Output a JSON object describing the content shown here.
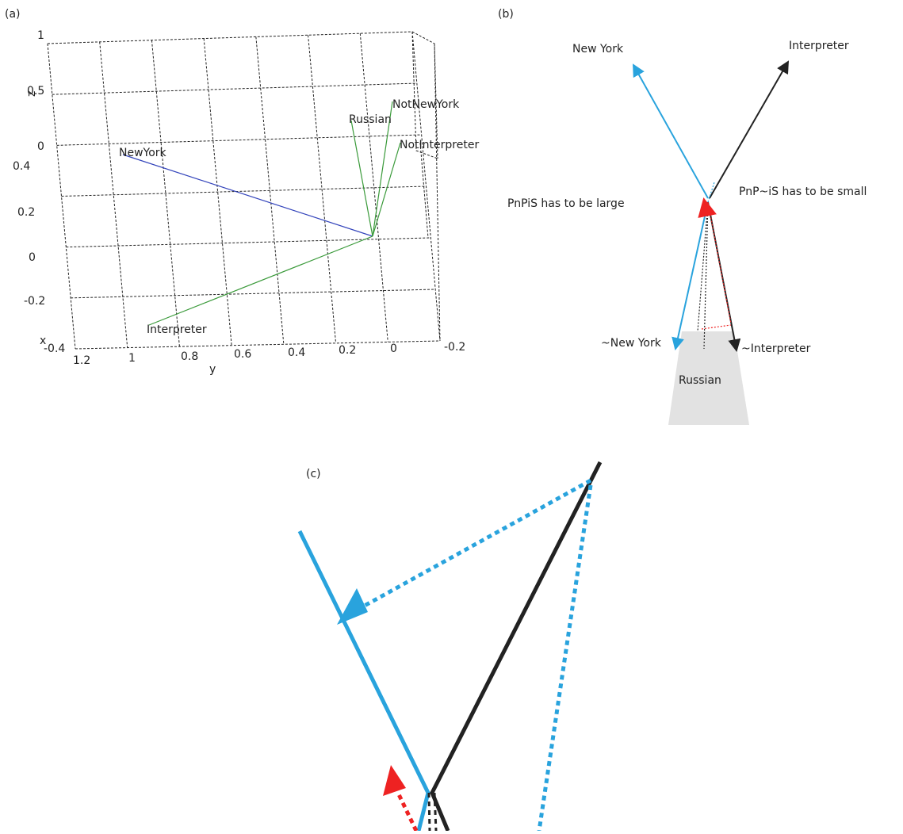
{
  "panels": [
    {
      "label": "(a)",
      "z_axis_label": "z",
      "x_axis_label": "x",
      "y_axis_label": "y",
      "z_ticks": [
        "1",
        "0.5",
        "0"
      ],
      "x_ticks": [
        "0.4",
        "0.2",
        "0",
        "-0.2",
        "-0.4"
      ],
      "y_ticks": [
        "1.2",
        "1",
        "0.8",
        "0.6",
        "0.4",
        "0.2",
        "0",
        "-0.2"
      ],
      "vectors": [
        "NewYork",
        "Russian",
        "NotNewYork",
        "NotInterpreter",
        "Interpreter"
      ]
    },
    {
      "label": "(b)",
      "vectors": [
        "New York",
        "Interpreter",
        "~New York",
        "~Interpreter"
      ],
      "region": "Russian",
      "notes": [
        "PnPiS has to be large",
        "PnP~iS has to be small"
      ]
    },
    {
      "label": "(c)"
    }
  ]
}
